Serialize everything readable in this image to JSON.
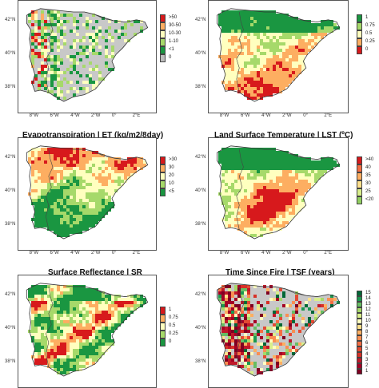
{
  "panels": [
    {
      "id": "p1",
      "title": "",
      "lat_labels": [
        "42°N",
        "40°N",
        "38°N"
      ],
      "lon_labels": [
        "8°W",
        "6°W",
        "4°W",
        "2°W",
        "0°",
        "2°E"
      ],
      "map_style": "sparse",
      "palette": [
        "#1a9641",
        "#a6d96a",
        "#ffffbf",
        "#fdae61",
        "#d7191c"
      ],
      "legend": {
        "labels": [
          ">50",
          "30-50",
          "10-30",
          "1-10",
          "<1",
          "0"
        ],
        "colors": [
          "#d7191c",
          "#fdae61",
          "#ffffbf",
          "#a6d96a",
          "#1a9641",
          "#bdbdbd"
        ]
      }
    },
    {
      "id": "p2",
      "title": "",
      "lat_labels": [
        "42°N",
        "40°N",
        "38°N"
      ],
      "lon_labels": [
        "8°W",
        "6°W",
        "4°W",
        "2°W",
        "0°",
        "2°E"
      ],
      "map_style": "south-hot",
      "palette": [
        "#1a9641",
        "#a6d96a",
        "#ffffbf",
        "#fdae61",
        "#d7191c"
      ],
      "legend": {
        "labels": [
          "1",
          "0.75",
          "0.5",
          "0.25",
          "0"
        ],
        "colors": [
          "#1a9641",
          "#a6d96a",
          "#ffffbf",
          "#fdae61",
          "#d7191c"
        ]
      }
    },
    {
      "id": "p3",
      "title": "Evapotranspiration | ET (kg/m2/8day)",
      "lat_labels": [
        "42°N",
        "40°N",
        "38°N"
      ],
      "lon_labels": [
        "8°W",
        "6°W",
        "4°W",
        "2°W",
        "0°",
        "2°E"
      ],
      "map_style": "north-hot",
      "palette": [
        "#1a9641",
        "#a6d96a",
        "#ffffbf",
        "#fdae61",
        "#d7191c"
      ],
      "legend": {
        "labels": [
          ">30",
          "30",
          "20",
          "10",
          "<5"
        ],
        "colors": [
          "#d7191c",
          "#fdae61",
          "#ffffbf",
          "#a6d96a",
          "#1a9641"
        ]
      }
    },
    {
      "id": "p4",
      "title": "Land Surface Temperature | LST (ºC)",
      "lat_labels": [
        "42°N",
        "40°N",
        "38°N"
      ],
      "lon_labels": [
        "8°W",
        "6°W",
        "4°W",
        "2°W",
        "0°",
        "2°E"
      ],
      "map_style": "center-hot",
      "palette": [
        "#1a9641",
        "#a6d96a",
        "#ffffbf",
        "#fdae61",
        "#d7191c"
      ],
      "legend": {
        "labels": [
          ">40",
          "40",
          "35",
          "30",
          "25",
          "<20"
        ],
        "colors": [
          "#d7191c",
          "#f46d43",
          "#fdae61",
          "#fee08b",
          "#d9ef8b",
          "#91cf60"
        ]
      }
    },
    {
      "id": "p5",
      "title": "Surface Reflectance | SR",
      "lat_labels": [
        "42°N",
        "40°N",
        "38°N"
      ],
      "lon_labels": [
        "8°W",
        "6°W",
        "4°W",
        "2°W",
        "0°",
        "2°E"
      ],
      "map_style": "patchy",
      "palette": [
        "#1a9641",
        "#a6d96a",
        "#ffffbf",
        "#fdae61",
        "#d7191c"
      ],
      "legend": {
        "labels": [
          "1",
          "0.75",
          "0.5",
          "0.25",
          "0"
        ],
        "colors": [
          "#d7191c",
          "#fdae61",
          "#ffffbf",
          "#a6d96a",
          "#1a9641"
        ]
      }
    },
    {
      "id": "p6",
      "title": "Time Since Fire | TSF (years)",
      "lat_labels": [
        "42°N",
        "40°N",
        "38°N"
      ],
      "lon_labels": [
        "8°W",
        "6°W",
        "4°W",
        "2°W",
        "0°",
        "2°E"
      ],
      "map_style": "fire",
      "palette": [
        "#d7191c",
        "#fdae61",
        "#ffffbf",
        "#a6d96a",
        "#1a9641"
      ],
      "legend": {
        "labels": [
          "15",
          "14",
          "13",
          "12",
          "11",
          "10",
          "9",
          "8",
          "7",
          "6",
          "5",
          "4",
          "3",
          "2",
          "1"
        ],
        "colors": [
          "#006837",
          "#1a9850",
          "#66bd63",
          "#a6d96a",
          "#d9ef8b",
          "#ffffbf",
          "#fee08b",
          "#fdae61",
          "#f98e52",
          "#f46d43",
          "#e34a33",
          "#d73027",
          "#c0182a",
          "#a50026",
          "#7f0022"
        ]
      }
    }
  ]
}
